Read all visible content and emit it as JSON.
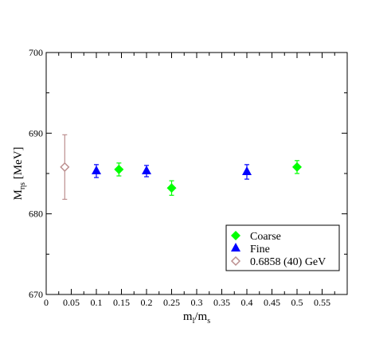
{
  "chart_data": {
    "type": "scatter",
    "xlabel": {
      "main": "m",
      "sub1": "l",
      "sep": "/m",
      "sub2": "s"
    },
    "ylabel": {
      "main": "M",
      "sub": "ηs",
      "rest": " [MeV]"
    },
    "xlim": [
      0,
      0.6
    ],
    "ylim": [
      670,
      700
    ],
    "xticks": [
      "0",
      "0.05",
      "0.1",
      "0.15",
      "0.2",
      "0.25",
      "0.3",
      "0.35",
      "0.4",
      "0.45",
      "0.5",
      "0.55"
    ],
    "yticks": [
      "670",
      "680",
      "690",
      "700"
    ],
    "grid": false,
    "legend_position": "bottom-right",
    "series": [
      {
        "name": "Coarse",
        "marker": "diamond-filled",
        "color": "#00ff00",
        "points": [
          {
            "x": 0.145,
            "y": 685.5,
            "err": 0.8
          },
          {
            "x": 0.25,
            "y": 683.2,
            "err": 0.9
          },
          {
            "x": 0.5,
            "y": 685.8,
            "err": 0.8
          }
        ]
      },
      {
        "name": "Fine",
        "marker": "triangle-filled",
        "color": "#0000ff",
        "points": [
          {
            "x": 0.1,
            "y": 685.3,
            "err": 0.8
          },
          {
            "x": 0.2,
            "y": 685.3,
            "err": 0.7
          },
          {
            "x": 0.4,
            "y": 685.2,
            "err": 0.9
          }
        ]
      },
      {
        "name": "0.6858 (40) GeV",
        "marker": "diamond-open",
        "color": "#bc8f8f",
        "points": [
          {
            "x": 0.037,
            "y": 685.8,
            "err": 4.0
          }
        ]
      }
    ]
  }
}
